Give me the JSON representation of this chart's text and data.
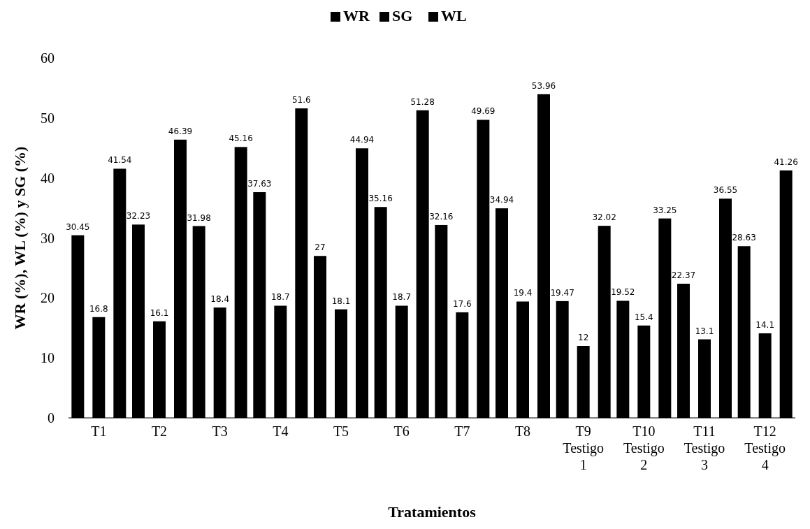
{
  "chart_data": {
    "type": "bar",
    "xlabel": "Tratamientos",
    "ylabel": "WR (%), WL (%) y SG (%)",
    "categories": [
      "T1",
      "T2",
      "T3",
      "T4",
      "T5",
      "T6",
      "T7",
      "T8",
      "T9\nTestigo\n1",
      "T10\nTestigo\n2",
      "T11\nTestigo\n3",
      "T12\nTestigo\n4"
    ],
    "series": [
      {
        "name": "WR",
        "color": "#000000",
        "values": [
          30.45,
          32.23,
          31.98,
          37.63,
          27,
          35.16,
          32.16,
          34.94,
          19.47,
          19.52,
          22.37,
          28.63
        ]
      },
      {
        "name": "SG",
        "color": "#000000",
        "values": [
          16.8,
          16.1,
          18.4,
          18.7,
          18.1,
          18.7,
          17.6,
          19.4,
          12.0,
          15.4,
          13.1,
          14.1
        ]
      },
      {
        "name": "WL",
        "color": "#000000",
        "values": [
          41.54,
          46.39,
          45.16,
          51.6,
          44.94,
          51.28,
          49.69,
          53.96,
          32.02,
          33.25,
          36.55,
          41.26
        ]
      }
    ],
    "ylim": [
      0,
      60
    ],
    "yticks": [
      0,
      10,
      20,
      30,
      40,
      50,
      60
    ],
    "data_labels": true,
    "legend": "top"
  }
}
